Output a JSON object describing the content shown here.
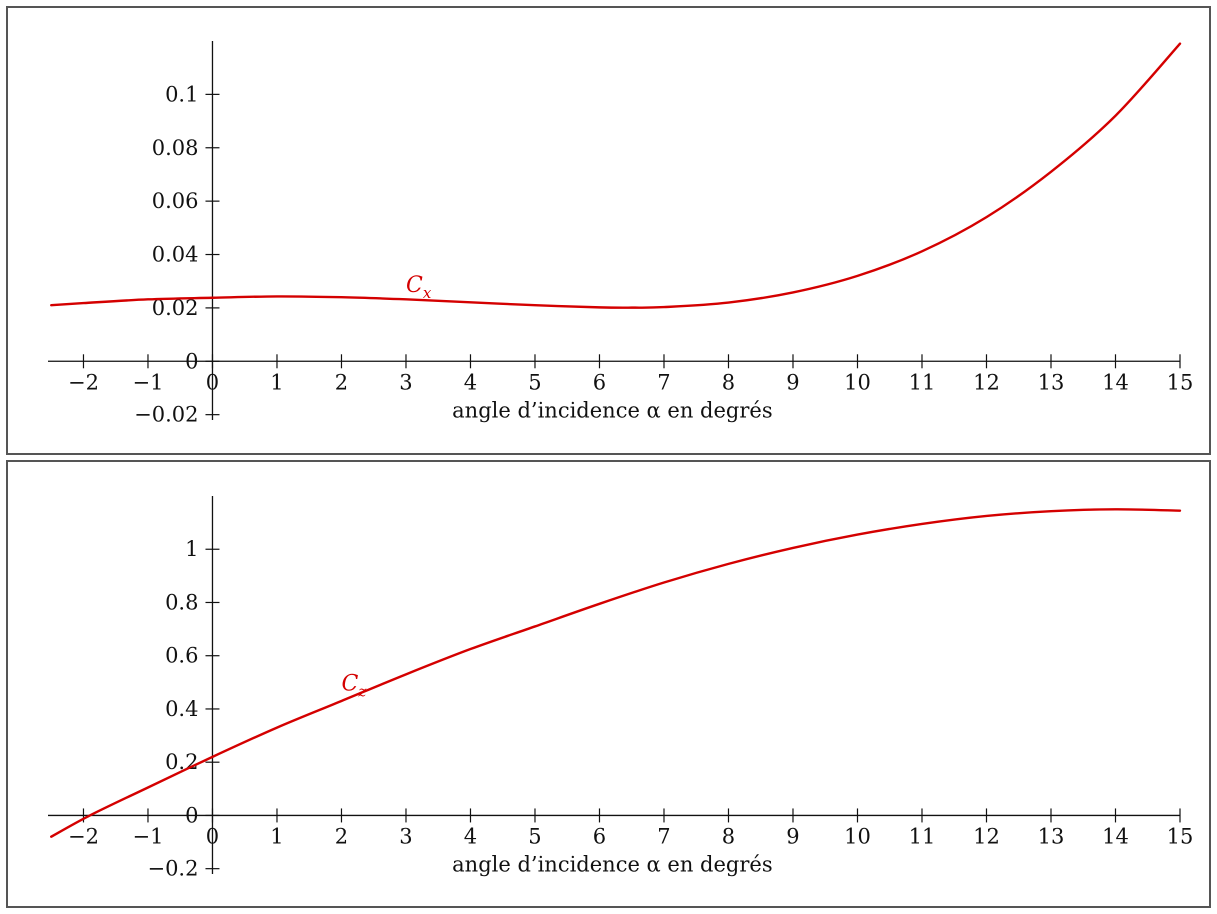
{
  "colors": {
    "curve": "#d40000",
    "axis": "#111111",
    "border": "#555555"
  },
  "chart_data": [
    {
      "type": "line",
      "xlabel": "angle d’incidence α en degrés",
      "ylabel": "",
      "title": "",
      "xlim": [
        -2.55,
        15
      ],
      "ylim": [
        -0.022,
        0.12
      ],
      "x_ticks": [
        -2,
        -1,
        0,
        1,
        2,
        3,
        4,
        5,
        6,
        7,
        8,
        9,
        10,
        11,
        12,
        13,
        14,
        15
      ],
      "x_tick_labels": [
        "−2",
        "−1",
        "0",
        "1",
        "2",
        "3",
        "4",
        "5",
        "6",
        "7",
        "8",
        "9",
        "10",
        "11",
        "12",
        "13",
        "14",
        "15"
      ],
      "y_ticks": [
        -0.02,
        0,
        0.02,
        0.04,
        0.06,
        0.08,
        0.1
      ],
      "y_tick_labels": [
        "−0.02",
        "0",
        "0.02",
        "0.04",
        "0.06",
        "0.08",
        "0.1"
      ],
      "grid": false,
      "series": [
        {
          "name": "C",
          "subscript": "x",
          "label_at": [
            3,
            0.026
          ],
          "x": [
            -2.5,
            -2,
            -1,
            0,
            1,
            2,
            3,
            4,
            5,
            6,
            6.5,
            7,
            8,
            9,
            10,
            11,
            12,
            13,
            14,
            15
          ],
          "values": [
            0.021,
            0.0218,
            0.0232,
            0.0238,
            0.0243,
            0.024,
            0.0232,
            0.0221,
            0.021,
            0.0202,
            0.0201,
            0.0203,
            0.022,
            0.0258,
            0.032,
            0.0412,
            0.054,
            0.071,
            0.092,
            0.119
          ]
        }
      ]
    },
    {
      "type": "line",
      "xlabel": "angle d’incidence α en degrés",
      "ylabel": "",
      "title": "",
      "xlim": [
        -2.55,
        15
      ],
      "ylim": [
        -0.22,
        1.2
      ],
      "x_ticks": [
        -2,
        -1,
        0,
        1,
        2,
        3,
        4,
        5,
        6,
        7,
        8,
        9,
        10,
        11,
        12,
        13,
        14,
        15
      ],
      "x_tick_labels": [
        "−2",
        "−1",
        "0",
        "1",
        "2",
        "3",
        "4",
        "5",
        "6",
        "7",
        "8",
        "9",
        "10",
        "11",
        "12",
        "13",
        "14",
        "15"
      ],
      "y_ticks": [
        -0.2,
        0,
        0.2,
        0.4,
        0.6,
        0.8,
        1
      ],
      "y_tick_labels": [
        "−0.2",
        "0",
        "0.2",
        "0.4",
        "0.6",
        "0.8",
        "1"
      ],
      "grid": false,
      "series": [
        {
          "name": "C",
          "subscript": "z",
          "label_at": [
            2,
            0.47
          ],
          "x": [
            -2.5,
            -1.9,
            -1,
            0,
            1,
            2,
            3,
            4,
            5,
            6,
            7,
            8,
            9,
            10,
            11,
            12,
            13,
            14,
            15
          ],
          "values": [
            -0.08,
            0.0,
            0.105,
            0.22,
            0.33,
            0.43,
            0.53,
            0.625,
            0.71,
            0.795,
            0.875,
            0.945,
            1.005,
            1.055,
            1.095,
            1.125,
            1.143,
            1.15,
            1.145
          ]
        }
      ]
    }
  ]
}
